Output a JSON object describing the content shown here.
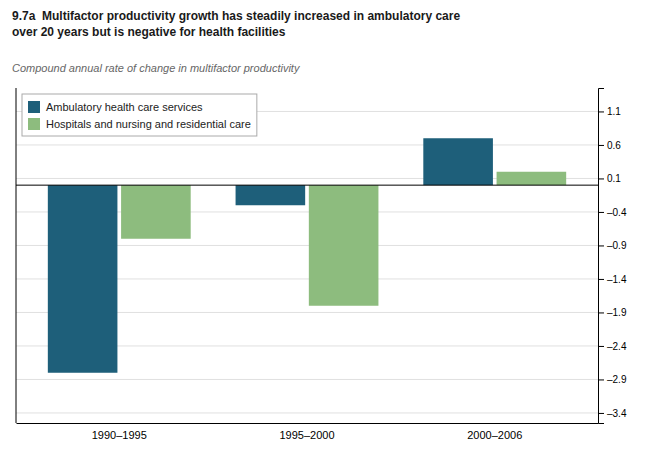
{
  "chart_data": {
    "type": "bar",
    "title": "9.7a  Multifactor productivity growth has steadily increased in ambulatory care\nover 20 years but is negative for health facilities",
    "subtitle": "Compound annual rate of change in multifactor productivity",
    "categories": [
      "1990–1995",
      "1995–2000",
      "2000–2006"
    ],
    "series": [
      {
        "name": "Ambulatory health care services",
        "color": "#1e5f7a",
        "values": [
          -2.8,
          -0.3,
          0.7
        ]
      },
      {
        "name": "Hospitals and nursing and residential care",
        "color": "#8dbc7e",
        "values": [
          -0.8,
          -1.8,
          0.2
        ]
      }
    ],
    "ylim": [
      -3.55,
      1.45
    ],
    "yticks": [
      1.1,
      0.6,
      0.1,
      {
        "value": -0.4,
        "label": "–0.4"
      },
      {
        "value": -0.9,
        "label": "–0.9"
      },
      {
        "value": -1.4,
        "label": "–1.4"
      },
      {
        "value": -1.9,
        "label": "–1.9"
      },
      {
        "value": -2.4,
        "label": "–2.4"
      },
      {
        "value": -2.9,
        "label": "–2.9"
      },
      {
        "value": -3.4,
        "label": "–3.4"
      }
    ],
    "grid": true,
    "legend": "upper-left"
  }
}
